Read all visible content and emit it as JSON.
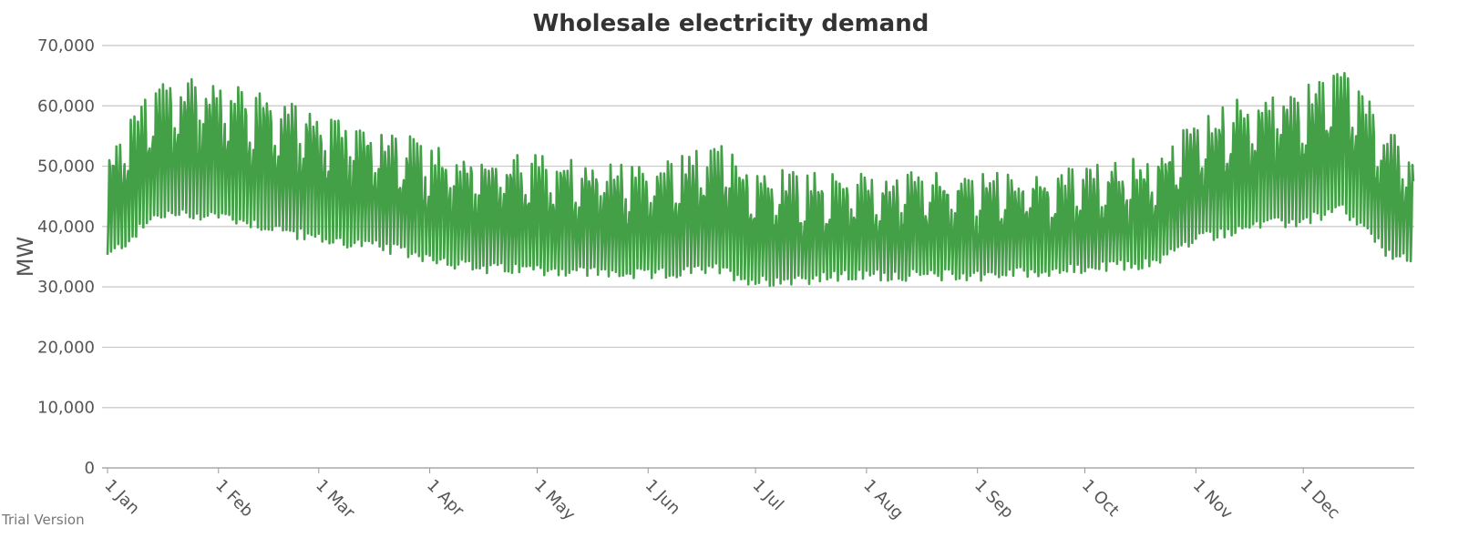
{
  "watermark": "Trial Version",
  "chart_data": {
    "type": "line",
    "title": "Wholesale electricity demand",
    "xlabel": "",
    "ylabel": "MW",
    "ylim": [
      0,
      70000
    ],
    "xlim": [
      "2019-01-01",
      "2019-12-31"
    ],
    "grid": true,
    "legend": "none",
    "yticks": [
      "0",
      "10,000",
      "20,000",
      "30,000",
      "40,000",
      "50,000",
      "60,000",
      "70,000"
    ],
    "xticks": [
      "1 Jan",
      "1 Feb",
      "1 Mar",
      "1 Apr",
      "1 May",
      "1 Jun",
      "1 Jul",
      "1 Aug",
      "1 Sep",
      "1 Oct",
      "1 Nov",
      "1 Dec"
    ],
    "line_color": "#43a047",
    "series": [
      {
        "x_step": "6h",
        "daily_weekday": [
          {
            "date": "2019-01-01",
            "min": 35000,
            "max": 50000
          },
          {
            "date": "2019-01-15",
            "min": 42000,
            "max": 63000
          },
          {
            "date": "2019-02-01",
            "min": 42000,
            "max": 62000
          },
          {
            "date": "2019-02-15",
            "min": 40000,
            "max": 60000
          },
          {
            "date": "2019-03-01",
            "min": 38000,
            "max": 57000
          },
          {
            "date": "2019-03-15",
            "min": 37000,
            "max": 55000
          },
          {
            "date": "2019-04-01",
            "min": 35000,
            "max": 52000
          },
          {
            "date": "2019-04-15",
            "min": 33000,
            "max": 50000
          },
          {
            "date": "2019-05-01",
            "min": 33000,
            "max": 50000
          },
          {
            "date": "2019-06-01",
            "min": 32000,
            "max": 48000
          },
          {
            "date": "2019-06-20",
            "min": 33000,
            "max": 52000
          },
          {
            "date": "2019-07-01",
            "min": 31000,
            "max": 48000
          },
          {
            "date": "2019-08-01",
            "min": 32000,
            "max": 47000
          },
          {
            "date": "2019-09-01",
            "min": 32000,
            "max": 47000
          },
          {
            "date": "2019-10-01",
            "min": 33000,
            "max": 48000
          },
          {
            "date": "2019-10-20",
            "min": 34000,
            "max": 50000
          },
          {
            "date": "2019-11-01",
            "min": 38000,
            "max": 56000
          },
          {
            "date": "2019-11-15",
            "min": 40000,
            "max": 60000
          },
          {
            "date": "2019-12-01",
            "min": 41000,
            "max": 61000
          },
          {
            "date": "2019-12-12",
            "min": 43000,
            "max": 65000
          },
          {
            "date": "2019-12-24",
            "min": 36000,
            "max": 55000
          },
          {
            "date": "2019-12-31",
            "min": 34000,
            "max": 50000
          }
        ],
        "weekend_factor": 0.85,
        "weekday_noise": 2000
      }
    ]
  }
}
